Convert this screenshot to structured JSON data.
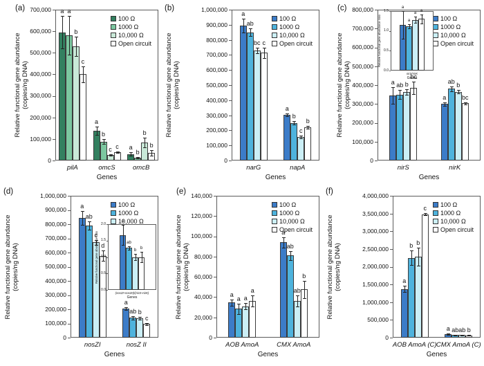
{
  "figure": {
    "background": "#ffffff"
  },
  "legend": {
    "items": [
      "100 Ω",
      "1000 Ω",
      "10,000 Ω",
      "Open circuit"
    ]
  },
  "palettes": {
    "green": [
      "#338060",
      "#7CC7A0",
      "#C9E9D8",
      "#FFFFFF"
    ],
    "blue": [
      "#3C7CC8",
      "#4EB3DD",
      "#CBEFF6",
      "#FFFFFF"
    ]
  },
  "chart_data": [
    {
      "panel_label": "(a)",
      "type": "bar",
      "palette": "green",
      "ylabel": [
        "Relative functional gene abundance",
        "(copies/ng DNA)"
      ],
      "xlabel": "Genes",
      "ylim": [
        0,
        700000
      ],
      "ytick_step": 100000,
      "categories": [
        "pilA",
        "omcS",
        "omcB"
      ],
      "series": [
        {
          "name": "100 Ω",
          "values": [
            595000,
            138000,
            30000
          ],
          "errors": [
            75000,
            20000,
            8000
          ]
        },
        {
          "name": "1000 Ω",
          "values": [
            580000,
            88000,
            12000
          ],
          "errors": [
            90000,
            12000,
            3000
          ]
        },
        {
          "name": "10,000 Ω",
          "values": [
            530000,
            25000,
            83000
          ],
          "errors": [
            45000,
            4000,
            22000
          ]
        },
        {
          "name": "Open circuit",
          "values": [
            400000,
            38000,
            35000
          ],
          "errors": [
            38000,
            4000,
            12000
          ]
        }
      ],
      "sig_letters": [
        [
          "a",
          "a",
          "b",
          "c"
        ],
        [
          "a",
          "b",
          "c",
          "c"
        ],
        [
          "a",
          "b",
          "b",
          "b"
        ]
      ],
      "inset": null
    },
    {
      "panel_label": "(b)",
      "type": "bar",
      "palette": "blue",
      "ylabel": [
        "Relative functional gene abundance",
        "(copies/ng DNA)"
      ],
      "xlabel": "Genes",
      "ylim": [
        0,
        1000000
      ],
      "ytick_step": 100000,
      "categories": [
        "narG",
        "napA"
      ],
      "series": [
        {
          "name": "100 Ω",
          "values": [
            895000,
            303000
          ],
          "errors": [
            45000,
            10000
          ]
        },
        {
          "name": "1000 Ω",
          "values": [
            850000,
            250000
          ],
          "errors": [
            25000,
            12000
          ]
        },
        {
          "name": "10,000 Ω",
          "values": [
            730000,
            155000
          ],
          "errors": [
            20000,
            10000
          ]
        },
        {
          "name": "Open circuit",
          "values": [
            715000,
            220000
          ],
          "errors": [
            35000,
            8000
          ]
        }
      ],
      "sig_letters": [
        [
          "a",
          "ab",
          "bc",
          "c"
        ],
        [
          "a",
          "b",
          "c",
          "b"
        ]
      ],
      "inset": null
    },
    {
      "panel_label": "(c)",
      "type": "bar",
      "palette": "blue",
      "ylabel": [
        "Relative functional gene abundance",
        "(copies/ng DNA)"
      ],
      "xlabel": "Genes",
      "ylim": [
        0,
        800000
      ],
      "ytick_step": 100000,
      "categories": [
        "nirS",
        "nirK"
      ],
      "series": [
        {
          "name": "100 Ω",
          "values": [
            345000,
            300000
          ],
          "errors": [
            45000,
            10000
          ]
        },
        {
          "name": "1000 Ω",
          "values": [
            350000,
            380000
          ],
          "errors": [
            25000,
            12000
          ]
        },
        {
          "name": "10,000 Ω",
          "values": [
            363000,
            365000
          ],
          "errors": [
            15000,
            10000
          ]
        },
        {
          "name": "Open circuit",
          "values": [
            385000,
            303000
          ],
          "errors": [
            33000,
            5000
          ]
        }
      ],
      "sig_letters": [
        [
          "a",
          "ab",
          "b",
          "bc"
        ],
        [
          "a",
          "ab",
          "b",
          "bc"
        ]
      ],
      "inset": {
        "ylabel": "Relative functional gene abundance ratio",
        "xlabel": "Genes",
        "category": "nirS/nirK",
        "ylim": [
          0,
          1.5
        ],
        "ytick_step": 0.5,
        "values": [
          1.15,
          1.12,
          1.28,
          1.3
        ],
        "errors": [
          0.35,
          0.05,
          0.08,
          0.12
        ],
        "sig_letters": [
          "a",
          "a",
          "a",
          "a"
        ]
      }
    },
    {
      "panel_label": "(d)",
      "type": "bar",
      "palette": "blue",
      "ylabel": [
        "Relative functional gene abundance",
        "(copies/ng DNA)"
      ],
      "xlabel": "Genes",
      "ylim": [
        0,
        1000000
      ],
      "ytick_step": 100000,
      "categories": [
        "nosZI",
        "nosZ II"
      ],
      "series": [
        {
          "name": "100 Ω",
          "values": [
            845000,
            205000
          ],
          "errors": [
            50000,
            10000
          ]
        },
        {
          "name": "1000 Ω",
          "values": [
            790000,
            140000
          ],
          "errors": [
            30000,
            12000
          ]
        },
        {
          "name": "10,000 Ω",
          "values": [
            672000,
            137000
          ],
          "errors": [
            18000,
            10000
          ]
        },
        {
          "name": "Open circuit",
          "values": [
            578000,
            97000
          ],
          "errors": [
            35000,
            7000
          ]
        }
      ],
      "sig_letters": [
        [
          "a",
          "ab",
          "c",
          "d"
        ],
        [
          "a",
          "ab",
          "b",
          "c"
        ]
      ],
      "inset": {
        "ylabel": "Relative functional gene abundance ratio",
        "xlabel": "Genes",
        "category": "(nosZI+nosZII)/(nirS+nirK)",
        "ylim": [
          0,
          2.0
        ],
        "ytick_step": 0.5,
        "values": [
          1.67,
          1.28,
          1.0,
          1.0
        ],
        "errors": [
          0.3,
          0.05,
          0.1,
          0.15
        ],
        "sig_letters": [
          "a",
          "ab",
          "b",
          "b"
        ]
      }
    },
    {
      "panel_label": "(e)",
      "type": "bar",
      "palette": "blue",
      "ylabel": [
        "Relative functional gene abundance",
        "(copies/ng DNA)"
      ],
      "xlabel": "Genes",
      "ylim": [
        0,
        140000
      ],
      "ytick_step": 20000,
      "categories": [
        "AOB AmoA",
        "CMX AmoA"
      ],
      "series": [
        {
          "name": "100 Ω",
          "values": [
            34500,
            94000
          ],
          "errors": [
            3000,
            5000
          ]
        },
        {
          "name": "1000 Ω",
          "values": [
            28500,
            81000
          ],
          "errors": [
            5000,
            4500
          ]
        },
        {
          "name": "10,000 Ω",
          "values": [
            31000,
            36500
          ],
          "errors": [
            3000,
            5500
          ]
        },
        {
          "name": "Open circuit",
          "values": [
            36500,
            47500
          ],
          "errors": [
            5500,
            8500
          ]
        }
      ],
      "sig_letters": [
        [
          "a",
          "a",
          "a",
          "a"
        ],
        [
          "a",
          "ab",
          "ab",
          "b"
        ]
      ],
      "inset": null
    },
    {
      "panel_label": "(f)",
      "type": "bar",
      "palette": "blue",
      "ylabel": [
        "Relative functional gene abundance",
        "(copies/ng DNA)"
      ],
      "xlabel": "Genes",
      "ylim": [
        0,
        4000000
      ],
      "ytick_step": 500000,
      "categories": [
        "AOB AmoA (C)",
        "CMX AmoA (C)"
      ],
      "series": [
        {
          "name": "100 Ω",
          "values": [
            1370000,
            95000
          ],
          "errors": [
            90000,
            15000
          ]
        },
        {
          "name": "1000 Ω",
          "values": [
            2250000,
            70000
          ],
          "errors": [
            200000,
            10000
          ]
        },
        {
          "name": "10,000 Ω",
          "values": [
            2280000,
            70000
          ],
          "errors": [
            250000,
            10000
          ]
        },
        {
          "name": "Open circuit",
          "values": [
            3480000,
            60000
          ],
          "errors": [
            30000,
            10000
          ]
        }
      ],
      "sig_letters": [
        [
          "a",
          "b",
          "b",
          "c"
        ],
        [
          "a",
          "ab",
          "ab",
          "b"
        ]
      ],
      "inset": null
    }
  ]
}
